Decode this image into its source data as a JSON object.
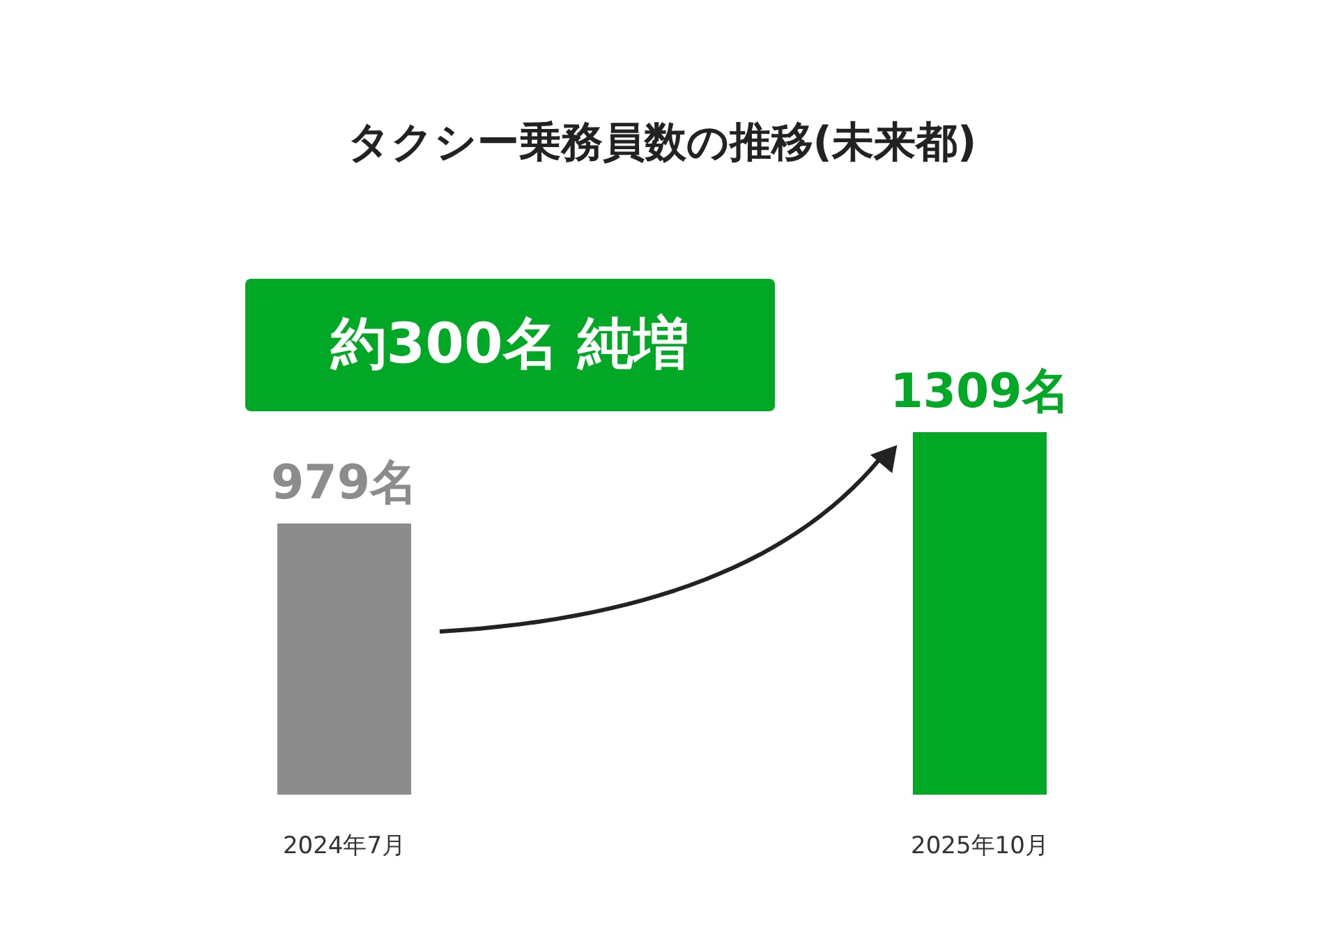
{
  "chart_data": {
    "type": "bar",
    "title": "タクシー乗務員数の推移(未来都)",
    "categories": [
      "2024年7月",
      "2025年10月"
    ],
    "values": [
      979,
      1309
    ],
    "colors": [
      "#8c8c8c",
      "#00a826"
    ],
    "value_labels": [
      "979名",
      "1309名"
    ],
    "annotations": [
      "約300名 純増"
    ],
    "tick_labels": "x"
  }
}
